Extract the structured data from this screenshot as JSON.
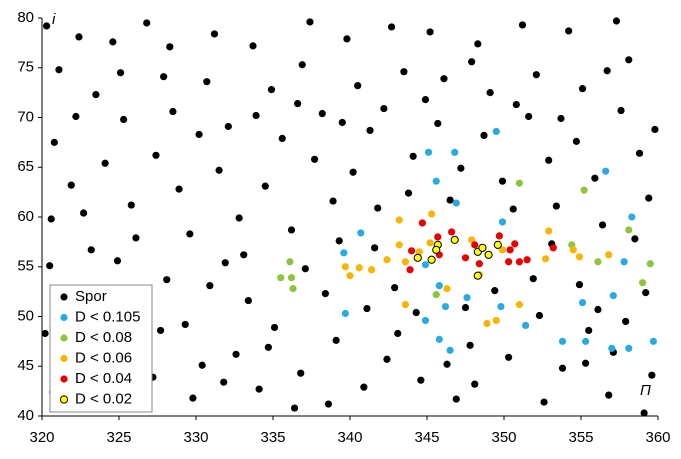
{
  "chart_data": {
    "type": "scatter",
    "xlabel": "П",
    "ylabel": "i",
    "xlim": [
      320,
      360
    ],
    "ylim": [
      40,
      80
    ],
    "xticks": [
      320,
      325,
      330,
      335,
      340,
      345,
      350,
      355,
      360
    ],
    "yticks": [
      40,
      45,
      50,
      55,
      60,
      65,
      70,
      75,
      80
    ],
    "legend": "lower left",
    "series": [
      {
        "name": "Spor",
        "color": "#000000",
        "x": [
          320.3,
          321.1,
          320.8,
          322.4,
          323.5,
          321.9,
          322.7,
          320.5,
          321.4,
          322.9,
          320.7,
          323.8,
          324.6,
          325.3,
          324.1,
          325.8,
          324.9,
          326.4,
          325.6,
          327.2,
          326.8,
          327.9,
          328.5,
          327.4,
          328.9,
          329.6,
          328.1,
          329.3,
          330.4,
          329.8,
          331.2,
          330.7,
          332.1,
          331.5,
          332.8,
          331.9,
          333.4,
          332.6,
          334.1,
          333.7,
          334.9,
          335.6,
          334.5,
          336.2,
          335.1,
          336.8,
          337.4,
          336.9,
          338.2,
          337.7,
          338.9,
          338.4,
          339.1,
          338.6,
          339.8,
          340.5,
          341.3,
          340.2,
          341.8,
          341.1,
          342.4,
          340.9,
          342.7,
          343.5,
          342.2,
          344.1,
          343.8,
          343.1,
          344.6,
          345.2,
          346.1,
          345.7,
          347.2,
          346.5,
          347.8,
          346.9,
          348.3,
          349.1,
          348.7,
          349.9,
          350.6,
          349.4,
          350.3,
          351.2,
          352.1,
          351.6,
          352.9,
          353.4,
          352.3,
          353.8,
          354.2,
          355.1,
          354.7,
          355.9,
          356.4,
          354.9,
          355.5,
          356.8,
          357.3,
          358.1,
          357.6,
          358.8,
          359.4,
          358.5,
          359.2,
          357.9,
          359.6,
          359.1,
          320.6,
          323.2,
          326.1,
          330.9,
          333.1,
          337.1,
          339.3,
          342.9,
          344.3,
          347.5,
          351.9,
          353.1,
          356.1,
          355.3,
          352.6,
          348.1,
          341.6,
          324.3,
          327.7,
          331.8,
          336.4,
          322.2,
          325.1,
          328.3,
          330.2,
          333.9,
          336.6,
          339.5,
          344.9,
          347.9,
          350.8,
          353.7,
          356.7,
          359.8,
          321.7,
          334.7,
          346.3,
          357.1,
          320.2
        ],
        "values": [
          79.2,
          74.8,
          67.5,
          78.1,
          72.3,
          63.2,
          60.4,
          55.1,
          50.3,
          46.8,
          42.4,
          41.5,
          77.6,
          69.8,
          65.4,
          61.2,
          55.6,
          52.1,
          47.3,
          43.9,
          79.5,
          74.1,
          70.6,
          66.2,
          62.8,
          58.3,
          53.7,
          49.2,
          45.1,
          41.8,
          78.4,
          73.6,
          69.1,
          64.7,
          59.9,
          55.4,
          51.6,
          46.2,
          42.7,
          77.2,
          72.8,
          67.9,
          63.1,
          58.7,
          48.9,
          44.3,
          79.6,
          75.3,
          70.4,
          65.8,
          61.6,
          52.3,
          47.6,
          41.2,
          77.9,
          73.2,
          68.7,
          64.5,
          60.9,
          50.8,
          45.7,
          42.9,
          79.1,
          74.6,
          70.9,
          66.1,
          62.4,
          48.3,
          43.6,
          78.6,
          73.9,
          69.4,
          64.9,
          61.7,
          47.1,
          41.7,
          77.4,
          72.5,
          68.2,
          63.6,
          60.8,
          52.6,
          45.9,
          79.3,
          74.3,
          70.1,
          65.7,
          61.1,
          50.1,
          44.8,
          78.7,
          72.9,
          67.6,
          63.9,
          59.2,
          53.2,
          48.6,
          42.1,
          79.7,
          75.8,
          70.7,
          66.4,
          61.9,
          57.8,
          52.4,
          49.5,
          44.1,
          40.3,
          59.8,
          56.7,
          57.9,
          53.1,
          56.2,
          54.8,
          57.6,
          52.9,
          50.4,
          50.9,
          53.8,
          57.3,
          50.7,
          45.3,
          41.4,
          43.2,
          56.9,
          43.2,
          48.6,
          43.4,
          40.8,
          70.1,
          74.5,
          77.1,
          68.3,
          70.2,
          71.4,
          69.5,
          71.8,
          75.6,
          71.3,
          69.9,
          74.7,
          68.8,
          44.6,
          46.9,
          45.2,
          46.4,
          48.3
        ]
      },
      {
        "name": "D < 0.105",
        "color": "#29abe2",
        "x": [
          349.5,
          345.1,
          346.8,
          345.6,
          346.9,
          340.7,
          349.9,
          356.6,
          358.3,
          339.6,
          344.9,
          345.8,
          347.6,
          346.2,
          349.8,
          355.1,
          339.7,
          344.9,
          351.4,
          345.8,
          346.5,
          353.8,
          355.3,
          357.0,
          358.1,
          359.7,
          357.1,
          357.8
        ],
        "values": [
          68.6,
          66.5,
          66.5,
          63.6,
          61.4,
          58.4,
          59.5,
          64.6,
          60.0,
          56.4,
          55.2,
          53.1,
          51.9,
          51.0,
          51.0,
          51.4,
          50.3,
          49.6,
          49.1,
          47.7,
          46.6,
          47.5,
          47.5,
          46.8,
          46.8,
          47.5,
          52.1,
          55.5
        ]
      },
      {
        "name": "D < 0.08",
        "color": "#8cc63f",
        "x": [
          351.0,
          355.2,
          358.1,
          354.4,
          356.1,
          359.5,
          359.0,
          335.5,
          336.1,
          336.2,
          336.3,
          345.6
        ],
        "values": [
          63.4,
          62.7,
          58.7,
          57.2,
          55.5,
          55.3,
          53.4,
          53.9,
          55.5,
          53.9,
          52.8,
          52.2
        ]
      },
      {
        "name": "D < 0.06",
        "color": "#f7b500",
        "x": [
          343.2,
          345.3,
          339.7,
          340.0,
          341.4,
          342.4,
          343.2,
          343.6,
          344.5,
          345.2,
          347.9,
          348.4,
          348.9,
          349.5,
          349.9,
          351.0,
          352.9,
          352.7,
          354.5,
          354.9,
          356.8,
          343.6,
          346.3,
          340.6
        ],
        "values": [
          59.7,
          60.3,
          55.0,
          54.1,
          54.7,
          55.7,
          57.2,
          55.5,
          56.5,
          57.4,
          57.7,
          54.2,
          49.3,
          49.6,
          56.7,
          51.2,
          58.6,
          55.8,
          56.7,
          56.0,
          56.2,
          51.2,
          52.8,
          54.9
        ]
      },
      {
        "name": "D < 0.04",
        "color": "#e60000",
        "x": [
          344.7,
          345.7,
          346.6,
          344.0,
          343.9,
          345.8,
          347.5,
          348.1,
          349.7,
          350.4,
          350.7,
          350.3,
          351.0,
          351.5,
          353.2,
          348.4
        ],
        "values": [
          59.4,
          58.0,
          58.5,
          56.6,
          54.7,
          56.2,
          55.9,
          57.2,
          58.1,
          56.7,
          57.3,
          55.5,
          55.5,
          55.7,
          56.9,
          55.3
        ]
      },
      {
        "name": "D < 0.02",
        "color": "#ffff00",
        "x": [
          344.4,
          345.3,
          345.7,
          346.8,
          348.3,
          348.6,
          349.0,
          349.6,
          348.3,
          345.6
        ],
        "values": [
          55.9,
          55.7,
          57.2,
          57.7,
          56.5,
          56.9,
          56.2,
          57.2,
          54.1,
          56.7
        ]
      }
    ]
  }
}
